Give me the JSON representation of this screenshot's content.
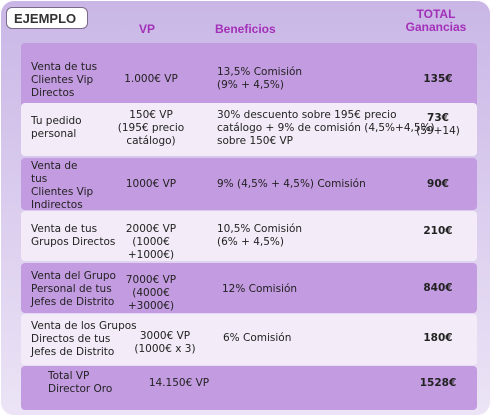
{
  "badge": "EJEMPLO",
  "headers": {
    "vp": "VP",
    "beneficios": "Beneficios",
    "total_line1": "TOTAL",
    "total_line2": "Ganancias"
  },
  "rows": [
    {
      "label": [
        "Venta de tus",
        "Clientes Vip",
        "Directos"
      ],
      "vp": [
        "1.000€ VP"
      ],
      "beneficio": [
        "13,5% Comisión",
        "(9% + 4,5%)"
      ],
      "total": [
        "135€"
      ]
    },
    {
      "label": [
        "Tu pedido",
        "personal"
      ],
      "vp": [
        "150€ VP",
        "(195€ precio",
        "catálogo)"
      ],
      "beneficio": [
        "30% descuento sobre 195€ precio",
        "catálogo + 9% de comisión (4,5%+4,5%)",
        "sobre 150€ VP"
      ],
      "total": [
        "73€",
        "(59+14)"
      ]
    },
    {
      "label": [
        "Venta de",
        "tus",
        "Clientes Vip",
        "Indirectos"
      ],
      "vp": [
        "1000€ VP"
      ],
      "beneficio": [
        "9% (4,5% + 4,5%) Comisión"
      ],
      "total": [
        "90€"
      ]
    },
    {
      "label": [
        "Venta de tus",
        "Grupos Directos"
      ],
      "vp": [
        "2000€ VP",
        "(1000€+1000€)"
      ],
      "beneficio": [
        "10,5% Comisión",
        "(6% + 4,5%)"
      ],
      "total": [
        "210€"
      ]
    },
    {
      "label": [
        "Venta del Grupo",
        "Personal de tus",
        "Jefes de Distrito"
      ],
      "vp": [
        "7000€ VP",
        "(4000€+3000€)"
      ],
      "beneficio": [
        "12% Comisión"
      ],
      "total": [
        "840€"
      ]
    },
    {
      "label": [
        "Venta de los Grupos",
        "Directos de tus",
        "Jefes de Distrito"
      ],
      "vp": [
        "3000€ VP",
        "(1000€ x 3)"
      ],
      "beneficio": [
        "6% Comisión"
      ],
      "total": [
        "180€"
      ]
    },
    {
      "label": [
        "Total VP",
        "Director Oro"
      ],
      "vp": [
        "14.150€ VP"
      ],
      "beneficio": [],
      "total": [
        "1528€"
      ]
    }
  ]
}
